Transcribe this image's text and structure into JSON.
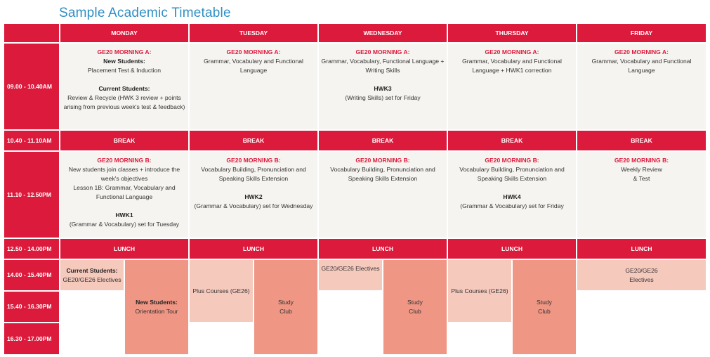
{
  "title": "Sample Academic Timetable",
  "days": [
    "MONDAY",
    "TUESDAY",
    "WEDNESDAY",
    "THURSDAY",
    "FRIDAY"
  ],
  "times": {
    "t1": "09.00 - 10.40AM",
    "t2": "10.40 - 11.10AM",
    "t3": "11.10 - 12.50PM",
    "t4": "12.50 - 14.00PM",
    "t5": "14.00 - 15.40PM",
    "t6": "15.40 - 16.30PM",
    "t7": "16.30 - 17.00PM"
  },
  "break_label": "BREAK",
  "lunch_label": "LUNCH",
  "morning_a": {
    "heading": "GE20 MORNING A:",
    "mon": {
      "new_label": "New Students:",
      "new_text": "Placement Test & Induction",
      "cur_label": "Current Students:",
      "cur_text1": "Review & Recycle (HWK 3 review + points",
      "cur_text2": "arising from previous week's test & feedback)"
    },
    "tue": {
      "l1": "Grammar, Vocabulary and Functional",
      "l2": "Language"
    },
    "wed": {
      "l1": "Grammar, Vocabulary, Functional Language +",
      "l2": "Writing Skills",
      "hwk": "HWK3",
      "hwk_text": "(Writing Skills) set for Friday"
    },
    "thu": {
      "l1": "Grammar, Vocabulary and Functional",
      "l2": "Language + HWK1 correction"
    },
    "fri": {
      "l1": "Grammar, Vocabulary and Functional",
      "l2": "Language"
    }
  },
  "morning_b": {
    "heading": "GE20 MORNING B:",
    "mon": {
      "l1": "New students join classes + introduce the",
      "l2": "week's objectives",
      "l3": "Lesson 1B: Grammar, Vocabulary and",
      "l4": "Functional Language",
      "hwk": "HWK1",
      "hwk_text": "(Grammar & Vocabulary) set for Tuesday"
    },
    "tue": {
      "l1": "Vocabulary Building, Pronunciation and",
      "l2": "Speaking Skills Extension",
      "hwk": "HWK2",
      "hwk_text": "(Grammar & Vocabulary) set for Wednesday"
    },
    "wed": {
      "l1": "Vocabulary Building, Pronunciation and",
      "l2": "Speaking Skills Extension"
    },
    "thu": {
      "l1": "Vocabulary Building, Pronunciation and",
      "l2": "Speaking Skills Extension",
      "hwk": "HWK4",
      "hwk_text": "(Grammar & Vocabulary) set for Friday"
    },
    "fri": {
      "l1": "Weekly Review",
      "l2": "& Test"
    }
  },
  "afternoon": {
    "mon_current_label": "Current Students:",
    "mon_current_text": "GE20/GE26 Electives",
    "mon_new_label": "New Students:",
    "mon_new_text": "Orientation Tour",
    "plus_courses": "Plus Courses (GE26)",
    "study": "Study",
    "club": "Club",
    "wed_electives": "GE20/GE26 Electives",
    "fri_l1": "GE20/GE26",
    "fri_l2": "Electives"
  },
  "colors": {
    "header_red": "#dc1a3c",
    "title_blue": "#2e8fc4",
    "pale_salmon": "#f6c9bd",
    "salmon": "#ef9684",
    "content_bg": "#f6f4f0"
  }
}
